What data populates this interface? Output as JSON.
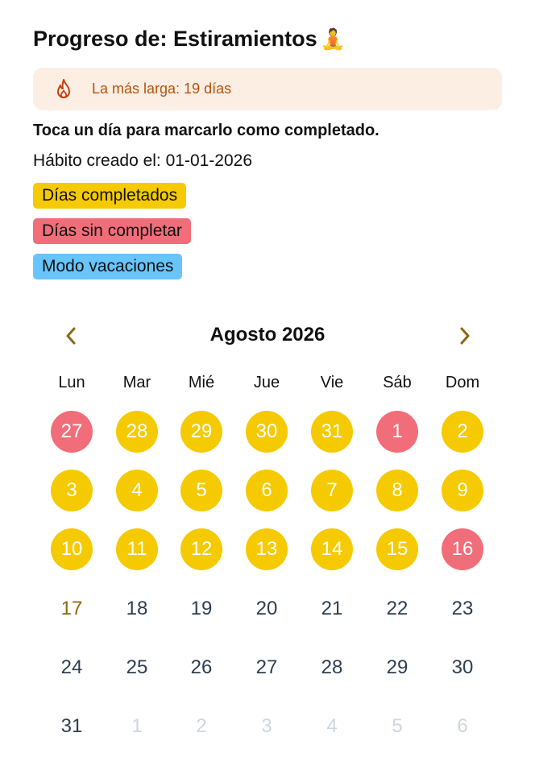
{
  "header": {
    "title": "Progreso de: Estiramientos",
    "emoji": "🧘"
  },
  "streak": {
    "icon": "flame-icon",
    "text": "La más larga: 19 días"
  },
  "instruction": "Toca un día para marcarlo como completado.",
  "created": "Hábito creado el: 01-01-2026",
  "legend": [
    {
      "label": "Días completados",
      "color": "#f5ca00"
    },
    {
      "label": "Días sin completar",
      "color": "#f26d7a"
    },
    {
      "label": "Modo vacaciones",
      "color": "#68c5fb"
    }
  ],
  "calendar": {
    "month_label": "Agosto 2026",
    "prev_icon": "chevron-left-icon",
    "next_icon": "chevron-right-icon",
    "weekdays": [
      "Lun",
      "Mar",
      "Mié",
      "Jue",
      "Vie",
      "Sáb",
      "Dom"
    ],
    "weeks": [
      [
        {
          "d": "27",
          "s": "missed"
        },
        {
          "d": "28",
          "s": "done"
        },
        {
          "d": "29",
          "s": "done"
        },
        {
          "d": "30",
          "s": "done"
        },
        {
          "d": "31",
          "s": "done"
        },
        {
          "d": "1",
          "s": "missed"
        },
        {
          "d": "2",
          "s": "done"
        }
      ],
      [
        {
          "d": "3",
          "s": "done"
        },
        {
          "d": "4",
          "s": "done"
        },
        {
          "d": "5",
          "s": "done"
        },
        {
          "d": "6",
          "s": "done"
        },
        {
          "d": "7",
          "s": "done"
        },
        {
          "d": "8",
          "s": "done"
        },
        {
          "d": "9",
          "s": "done"
        }
      ],
      [
        {
          "d": "10",
          "s": "done"
        },
        {
          "d": "11",
          "s": "done"
        },
        {
          "d": "12",
          "s": "done"
        },
        {
          "d": "13",
          "s": "done"
        },
        {
          "d": "14",
          "s": "done"
        },
        {
          "d": "15",
          "s": "done"
        },
        {
          "d": "16",
          "s": "missed"
        }
      ],
      [
        {
          "d": "17",
          "s": "today"
        },
        {
          "d": "18",
          "s": "plain"
        },
        {
          "d": "19",
          "s": "plain"
        },
        {
          "d": "20",
          "s": "plain"
        },
        {
          "d": "21",
          "s": "plain"
        },
        {
          "d": "22",
          "s": "plain"
        },
        {
          "d": "23",
          "s": "plain"
        }
      ],
      [
        {
          "d": "24",
          "s": "plain"
        },
        {
          "d": "25",
          "s": "plain"
        },
        {
          "d": "26",
          "s": "plain"
        },
        {
          "d": "27",
          "s": "plain"
        },
        {
          "d": "28",
          "s": "plain"
        },
        {
          "d": "29",
          "s": "plain"
        },
        {
          "d": "30",
          "s": "plain"
        }
      ],
      [
        {
          "d": "31",
          "s": "plain"
        },
        {
          "d": "1",
          "s": "other"
        },
        {
          "d": "2",
          "s": "other"
        },
        {
          "d": "3",
          "s": "other"
        },
        {
          "d": "4",
          "s": "other"
        },
        {
          "d": "5",
          "s": "other"
        },
        {
          "d": "6",
          "s": "other"
        }
      ]
    ]
  }
}
